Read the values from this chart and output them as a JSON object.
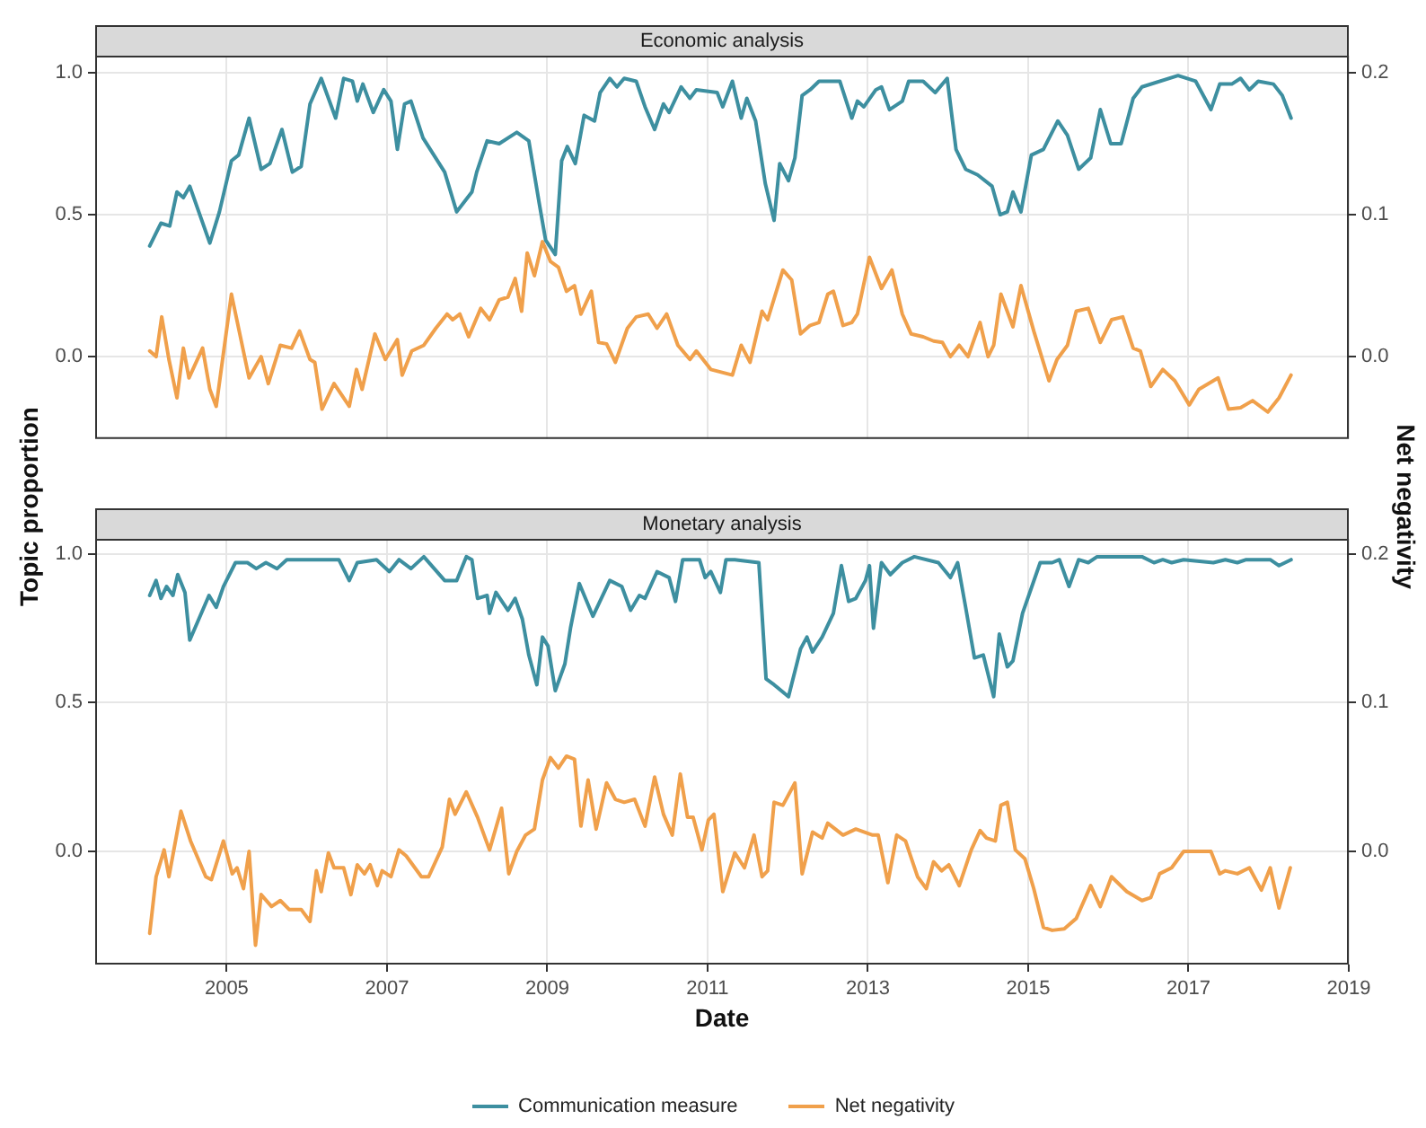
{
  "chart_data": [
    {
      "type": "line",
      "title": "Economic analysis",
      "ylabel": "Topic proportion",
      "y2label": "Net negativity",
      "xlim": [
        2003.36,
        2019
      ],
      "xticks": [
        2005,
        2007,
        2009,
        2011,
        2013,
        2015,
        2017,
        2019
      ],
      "ylim": [
        -0.29,
        1.06
      ],
      "yticks": [
        {
          "value": 0,
          "label": "0.0"
        },
        {
          "value": 0.5,
          "label": "0.5"
        },
        {
          "value": 1,
          "label": "1.0"
        }
      ],
      "y2lim": [
        -0.058,
        0.212
      ],
      "y2ticks": [
        {
          "value": 0,
          "label": "0.0"
        },
        {
          "value": 0.1,
          "label": "0.1"
        },
        {
          "value": 0.2,
          "label": "0.2"
        }
      ],
      "grid": true,
      "tick_labels": "y",
      "marker": "none",
      "line_style": "solid",
      "series": [
        {
          "color": "#3d8fa0",
          "x": [
            2004.04,
            2004.18,
            2004.29,
            2004.38,
            2004.46,
            2004.54,
            2004.79,
            2004.91,
            2005.06,
            2005.15,
            2005.28,
            2005.43,
            2005.54,
            2005.69,
            2005.82,
            2005.93,
            2006.04,
            2006.18,
            2006.36,
            2006.46,
            2006.57,
            2006.63,
            2006.7,
            2006.83,
            2006.96,
            2007.05,
            2007.13,
            2007.22,
            2007.3,
            2007.45,
            2007.72,
            2007.87,
            2008.06,
            2008.12,
            2008.25,
            2008.4,
            2008.62,
            2008.77,
            2008.9,
            2008.98,
            2009.1,
            2009.18,
            2009.25,
            2009.35,
            2009.46,
            2009.59,
            2009.66,
            2009.78,
            2009.87,
            2009.96,
            2010.11,
            2010.22,
            2010.34,
            2010.45,
            2010.52,
            2010.67,
            2010.78,
            2010.86,
            2011.12,
            2011.19,
            2011.31,
            2011.42,
            2011.49,
            2011.6,
            2011.72,
            2011.83,
            2011.9,
            2012.01,
            2012.09,
            2012.18,
            2012.28,
            2012.39,
            2012.65,
            2012.8,
            2012.87,
            2012.95,
            2013.1,
            2013.17,
            2013.27,
            2013.43,
            2013.51,
            2013.69,
            2013.84,
            2013.99,
            2014.1,
            2014.22,
            2014.37,
            2014.55,
            2014.65,
            2014.74,
            2014.81,
            2014.91,
            2015.04,
            2015.19,
            2015.37,
            2015.49,
            2015.63,
            2015.78,
            2015.9,
            2016.03,
            2016.16,
            2016.31,
            2016.42,
            2016.87,
            2017.09,
            2017.28,
            2017.39,
            2017.54,
            2017.65,
            2017.76,
            2017.87,
            2018.06,
            2018.17,
            2018.28
          ],
          "values": [
            0.39,
            0.47,
            0.46,
            0.58,
            0.56,
            0.6,
            0.4,
            0.51,
            0.69,
            0.71,
            0.84,
            0.66,
            0.68,
            0.8,
            0.65,
            0.67,
            0.89,
            0.98,
            0.84,
            0.98,
            0.97,
            0.9,
            0.96,
            0.86,
            0.94,
            0.9,
            0.73,
            0.89,
            0.9,
            0.77,
            0.65,
            0.51,
            0.58,
            0.65,
            0.76,
            0.75,
            0.79,
            0.76,
            0.54,
            0.41,
            0.36,
            0.69,
            0.74,
            0.68,
            0.85,
            0.83,
            0.93,
            0.98,
            0.95,
            0.98,
            0.97,
            0.88,
            0.8,
            0.89,
            0.86,
            0.95,
            0.91,
            0.94,
            0.93,
            0.88,
            0.97,
            0.84,
            0.91,
            0.83,
            0.61,
            0.48,
            0.68,
            0.62,
            0.7,
            0.92,
            0.94,
            0.97,
            0.97,
            0.84,
            0.9,
            0.88,
            0.94,
            0.95,
            0.87,
            0.9,
            0.97,
            0.97,
            0.93,
            0.98,
            0.73,
            0.66,
            0.64,
            0.6,
            0.5,
            0.51,
            0.58,
            0.51,
            0.71,
            0.73,
            0.83,
            0.78,
            0.66,
            0.7,
            0.87,
            0.75,
            0.75,
            0.91,
            0.95,
            0.99,
            0.97,
            0.87,
            0.96,
            0.96,
            0.98,
            0.94,
            0.97,
            0.96,
            0.92,
            0.84
          ]
        },
        {
          "color": "#f0a04b",
          "axis": "y2",
          "x": [
            2004.04,
            2004.12,
            2004.19,
            2004.28,
            2004.38,
            2004.46,
            2004.53,
            2004.7,
            2004.79,
            2004.87,
            2005.06,
            2005.28,
            2005.43,
            2005.52,
            2005.67,
            2005.81,
            2005.91,
            2006.04,
            2006.1,
            2006.19,
            2006.34,
            2006.53,
            2006.62,
            2006.69,
            2006.85,
            2006.98,
            2007.13,
            2007.19,
            2007.31,
            2007.46,
            2007.61,
            2007.75,
            2007.82,
            2007.91,
            2008.02,
            2008.17,
            2008.28,
            2008.4,
            2008.51,
            2008.6,
            2008.68,
            2008.75,
            2008.84,
            2008.94,
            2009.04,
            2009.14,
            2009.24,
            2009.34,
            2009.42,
            2009.55,
            2009.64,
            2009.74,
            2009.85,
            2010.0,
            2010.11,
            2010.26,
            2010.37,
            2010.49,
            2010.63,
            2010.78,
            2010.86,
            2011.04,
            2011.31,
            2011.42,
            2011.53,
            2011.68,
            2011.75,
            2011.94,
            2012.05,
            2012.16,
            2012.28,
            2012.39,
            2012.5,
            2012.57,
            2012.69,
            2012.8,
            2012.87,
            2013.02,
            2013.17,
            2013.3,
            2013.43,
            2013.54,
            2013.69,
            2013.82,
            2013.93,
            2014.03,
            2014.14,
            2014.25,
            2014.4,
            2014.5,
            2014.57,
            2014.66,
            2014.81,
            2014.91,
            2015.07,
            2015.26,
            2015.36,
            2015.49,
            2015.6,
            2015.75,
            2015.9,
            2016.04,
            2016.18,
            2016.31,
            2016.4,
            2016.53,
            2016.68,
            2016.83,
            2017.01,
            2017.13,
            2017.37,
            2017.5,
            2017.65,
            2017.8,
            2017.99,
            2018.13,
            2018.28
          ],
          "values": [
            0.004,
            0.0,
            0.028,
            -0.002,
            -0.029,
            0.006,
            -0.015,
            0.006,
            -0.023,
            -0.035,
            0.044,
            -0.015,
            0.0,
            -0.019,
            0.008,
            0.006,
            0.018,
            -0.002,
            -0.004,
            -0.037,
            -0.019,
            -0.035,
            -0.009,
            -0.023,
            0.016,
            -0.002,
            0.012,
            -0.013,
            0.004,
            0.008,
            0.02,
            0.03,
            0.026,
            0.03,
            0.014,
            0.034,
            0.026,
            0.04,
            0.042,
            0.055,
            0.032,
            0.073,
            0.057,
            0.081,
            0.067,
            0.063,
            0.046,
            0.05,
            0.03,
            0.046,
            0.01,
            0.009,
            -0.004,
            0.02,
            0.028,
            0.03,
            0.02,
            0.03,
            0.008,
            -0.002,
            0.004,
            -0.009,
            -0.013,
            0.008,
            -0.004,
            0.032,
            0.026,
            0.061,
            0.054,
            0.016,
            0.022,
            0.024,
            0.044,
            0.046,
            0.022,
            0.024,
            0.03,
            0.07,
            0.048,
            0.061,
            0.03,
            0.016,
            0.014,
            0.011,
            0.01,
            0.0,
            0.008,
            0.0,
            0.024,
            0.0,
            0.008,
            0.044,
            0.021,
            0.05,
            0.018,
            -0.017,
            -0.002,
            0.008,
            0.032,
            0.034,
            0.01,
            0.026,
            0.028,
            0.006,
            0.004,
            -0.021,
            -0.009,
            -0.017,
            -0.034,
            -0.023,
            -0.015,
            -0.037,
            -0.036,
            -0.031,
            -0.039,
            -0.029,
            -0.013
          ]
        }
      ]
    },
    {
      "type": "line",
      "title": "Monetary analysis",
      "xlabel": "Date",
      "xlim": [
        2003.36,
        2019
      ],
      "xticks": [
        2005,
        2007,
        2009,
        2011,
        2013,
        2015,
        2017,
        2019
      ],
      "ylim": [
        -0.38,
        1.05
      ],
      "yticks": [
        {
          "value": 0,
          "label": "0.0"
        },
        {
          "value": 0.5,
          "label": "0.5"
        },
        {
          "value": 1,
          "label": "1.0"
        }
      ],
      "y2lim": [
        -0.076,
        0.21
      ],
      "y2ticks": [
        {
          "value": 0,
          "label": "0.0"
        },
        {
          "value": 0.1,
          "label": "0.1"
        },
        {
          "value": 0.2,
          "label": "0.2"
        }
      ],
      "grid": true,
      "legend": "bottom",
      "marker": "none",
      "line_style": "solid",
      "series": [
        {
          "name": "Communication measure",
          "color": "#3d8fa0",
          "x": [
            2004.04,
            2004.12,
            2004.18,
            2004.25,
            2004.33,
            2004.39,
            2004.48,
            2004.54,
            2004.78,
            2004.87,
            2004.96,
            2005.11,
            2005.26,
            2005.37,
            2005.49,
            2005.63,
            2005.75,
            2006.19,
            2006.4,
            2006.53,
            2006.63,
            2006.87,
            2007.03,
            2007.15,
            2007.3,
            2007.46,
            2007.72,
            2007.87,
            2007.99,
            2008.06,
            2008.13,
            2008.25,
            2008.28,
            2008.36,
            2008.51,
            2008.6,
            2008.69,
            2008.77,
            2008.87,
            2008.94,
            2009.01,
            2009.1,
            2009.22,
            2009.29,
            2009.4,
            2009.57,
            2009.78,
            2009.93,
            2010.04,
            2010.15,
            2010.22,
            2010.37,
            2010.52,
            2010.6,
            2010.69,
            2010.9,
            2010.97,
            2011.04,
            2011.16,
            2011.23,
            2011.34,
            2011.64,
            2011.73,
            2011.83,
            2012.01,
            2012.16,
            2012.24,
            2012.31,
            2012.43,
            2012.57,
            2012.67,
            2012.76,
            2012.85,
            2012.97,
            2013.02,
            2013.07,
            2013.17,
            2013.28,
            2013.43,
            2013.58,
            2013.88,
            2014.03,
            2014.12,
            2014.22,
            2014.33,
            2014.44,
            2014.57,
            2014.64,
            2014.74,
            2014.81,
            2014.93,
            2015.15,
            2015.3,
            2015.39,
            2015.51,
            2015.63,
            2015.75,
            2015.86,
            2016.42,
            2016.57,
            2016.68,
            2016.79,
            2016.94,
            2017.31,
            2017.46,
            2017.61,
            2017.72,
            2018.02,
            2018.13,
            2018.28
          ],
          "values": [
            0.86,
            0.91,
            0.85,
            0.89,
            0.86,
            0.93,
            0.87,
            0.71,
            0.86,
            0.82,
            0.89,
            0.97,
            0.97,
            0.95,
            0.97,
            0.95,
            0.98,
            0.98,
            0.98,
            0.91,
            0.97,
            0.98,
            0.94,
            0.98,
            0.95,
            0.99,
            0.91,
            0.91,
            0.99,
            0.98,
            0.85,
            0.86,
            0.8,
            0.87,
            0.81,
            0.85,
            0.78,
            0.66,
            0.56,
            0.72,
            0.69,
            0.54,
            0.63,
            0.75,
            0.9,
            0.79,
            0.91,
            0.89,
            0.81,
            0.86,
            0.85,
            0.94,
            0.92,
            0.84,
            0.98,
            0.98,
            0.92,
            0.94,
            0.87,
            0.98,
            0.98,
            0.97,
            0.58,
            0.56,
            0.52,
            0.68,
            0.72,
            0.67,
            0.72,
            0.8,
            0.96,
            0.84,
            0.85,
            0.91,
            0.96,
            0.75,
            0.97,
            0.93,
            0.97,
            0.99,
            0.97,
            0.92,
            0.97,
            0.82,
            0.65,
            0.66,
            0.52,
            0.73,
            0.62,
            0.64,
            0.8,
            0.97,
            0.97,
            0.98,
            0.89,
            0.98,
            0.97,
            0.99,
            0.99,
            0.97,
            0.98,
            0.97,
            0.98,
            0.97,
            0.98,
            0.97,
            0.98,
            0.98,
            0.96,
            0.98
          ]
        },
        {
          "name": "Net negativity",
          "color": "#f0a04b",
          "axis": "y2",
          "x": [
            2004.04,
            2004.12,
            2004.22,
            2004.28,
            2004.43,
            2004.55,
            2004.74,
            2004.81,
            2004.96,
            2005.07,
            2005.13,
            2005.21,
            2005.28,
            2005.36,
            2005.43,
            2005.56,
            2005.67,
            2005.78,
            2005.93,
            2006.04,
            2006.12,
            2006.18,
            2006.27,
            2006.34,
            2006.46,
            2006.55,
            2006.63,
            2006.72,
            2006.79,
            2006.88,
            2006.94,
            2007.05,
            2007.15,
            2007.24,
            2007.43,
            2007.52,
            2007.69,
            2007.78,
            2007.85,
            2007.99,
            2008.13,
            2008.28,
            2008.43,
            2008.52,
            2008.62,
            2008.73,
            2008.84,
            2008.94,
            2009.04,
            2009.14,
            2009.24,
            2009.34,
            2009.42,
            2009.51,
            2009.61,
            2009.74,
            2009.85,
            2009.96,
            2010.09,
            2010.22,
            2010.34,
            2010.45,
            2010.56,
            2010.66,
            2010.75,
            2010.82,
            2010.93,
            2011.01,
            2011.08,
            2011.19,
            2011.34,
            2011.46,
            2011.58,
            2011.68,
            2011.75,
            2011.83,
            2011.94,
            2012.09,
            2012.18,
            2012.31,
            2012.43,
            2012.5,
            2012.69,
            2012.85,
            2013.06,
            2013.13,
            2013.25,
            2013.36,
            2013.47,
            2013.62,
            2013.73,
            2013.82,
            2013.92,
            2014.01,
            2014.14,
            2014.29,
            2014.4,
            2014.48,
            2014.59,
            2014.66,
            2014.74,
            2014.84,
            2014.96,
            2015.07,
            2015.19,
            2015.3,
            2015.45,
            2015.6,
            2015.78,
            2015.9,
            2016.04,
            2016.23,
            2016.42,
            2016.53,
            2016.64,
            2016.79,
            2016.94,
            2017.28,
            2017.39,
            2017.46,
            2017.61,
            2017.76,
            2017.91,
            2018.02,
            2018.13,
            2018.27
          ],
          "values": [
            -0.055,
            -0.017,
            0.001,
            -0.017,
            0.027,
            0.007,
            -0.017,
            -0.019,
            0.007,
            -0.015,
            -0.011,
            -0.025,
            0.0,
            -0.063,
            -0.029,
            -0.037,
            -0.033,
            -0.039,
            -0.039,
            -0.047,
            -0.013,
            -0.027,
            -0.001,
            -0.011,
            -0.011,
            -0.029,
            -0.009,
            -0.015,
            -0.009,
            -0.023,
            -0.013,
            -0.017,
            0.001,
            -0.003,
            -0.017,
            -0.017,
            0.003,
            0.035,
            0.025,
            0.04,
            0.023,
            0.001,
            0.029,
            -0.015,
            0.0,
            0.011,
            0.015,
            0.048,
            0.063,
            0.056,
            0.064,
            0.062,
            0.017,
            0.048,
            0.015,
            0.046,
            0.035,
            0.033,
            0.035,
            0.017,
            0.05,
            0.025,
            0.011,
            0.052,
            0.023,
            0.023,
            0.001,
            0.021,
            0.025,
            -0.027,
            -0.001,
            -0.011,
            0.011,
            -0.017,
            -0.013,
            0.033,
            0.031,
            0.046,
            -0.015,
            0.013,
            0.009,
            0.019,
            0.011,
            0.015,
            0.011,
            0.011,
            -0.021,
            0.011,
            0.007,
            -0.017,
            -0.025,
            -0.007,
            -0.013,
            -0.009,
            -0.023,
            0.001,
            0.014,
            0.009,
            0.007,
            0.031,
            0.033,
            0.001,
            -0.005,
            -0.025,
            -0.051,
            -0.053,
            -0.052,
            -0.045,
            -0.023,
            -0.037,
            -0.017,
            -0.027,
            -0.033,
            -0.031,
            -0.015,
            -0.011,
            0.0,
            0.0,
            -0.015,
            -0.013,
            -0.015,
            -0.011,
            -0.026,
            -0.011,
            -0.038,
            -0.011
          ]
        }
      ]
    }
  ]
}
